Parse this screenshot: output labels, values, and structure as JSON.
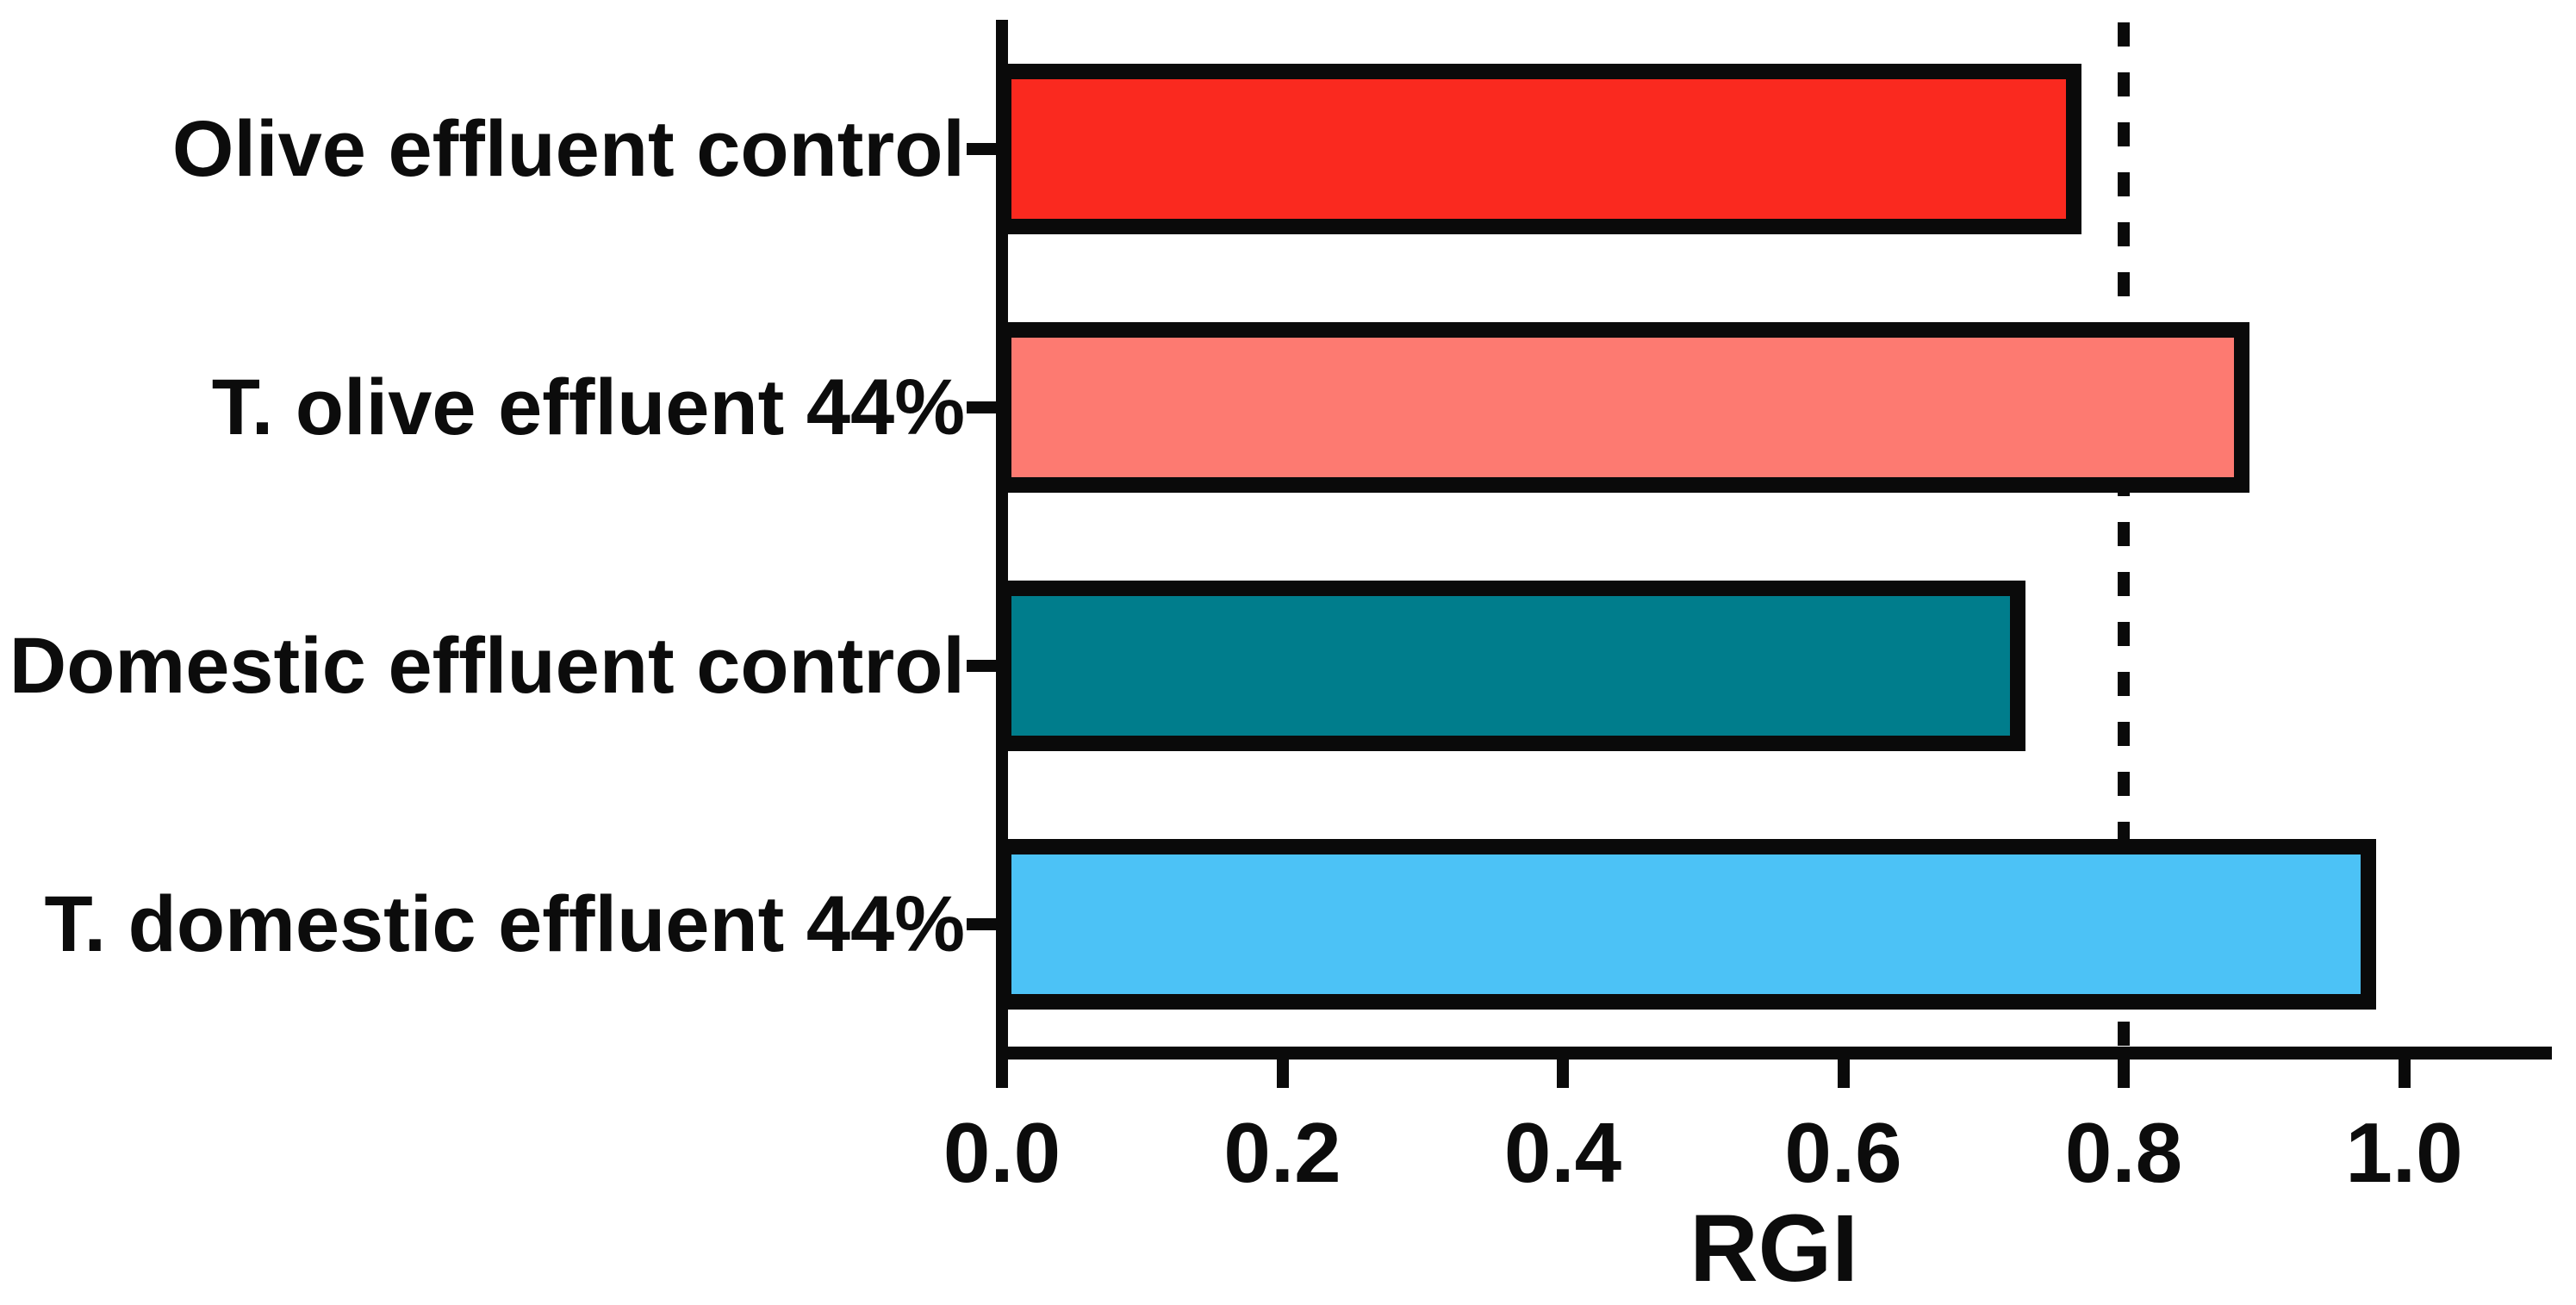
{
  "chart_data": {
    "type": "bar",
    "orientation": "horizontal",
    "title": "",
    "xlabel": "RGI",
    "categories": [
      "Olive effluent control",
      "T. olive effluent 44%",
      "Domestic effluent control",
      "T. domestic effluent 44%"
    ],
    "values": [
      0.77,
      0.89,
      0.73,
      0.98
    ],
    "bar_colors": [
      "#fa291f",
      "#fd7a71",
      "#007d8c",
      "#4cc2f6"
    ],
    "bar_border_color": "#0a0a0a",
    "axis_color": "#0a0a0a",
    "background_color": "#ffffff",
    "x_ticks": [
      0.0,
      0.2,
      0.4,
      0.6,
      0.8,
      1.0
    ],
    "x_tick_labels": [
      "0.0",
      "0.2",
      "0.4",
      "0.6",
      "0.8",
      "1.0"
    ],
    "xlim": [
      0.0,
      1.1
    ],
    "reference_line": {
      "x": 0.8,
      "style": "dashed",
      "color": "#0a0a0a"
    },
    "grid": false,
    "legend": null
  }
}
